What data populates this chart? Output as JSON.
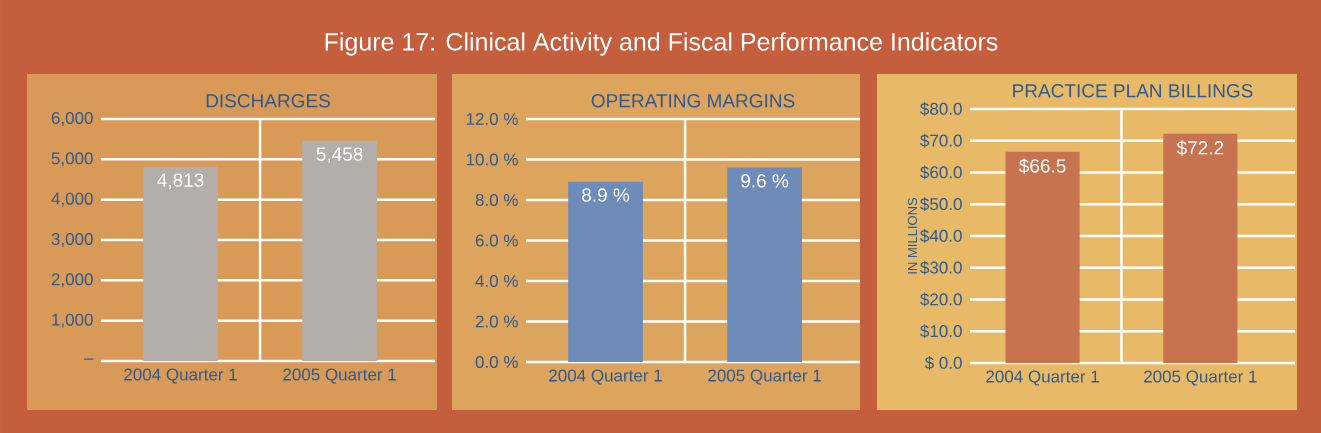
{
  "chart_data": [
    {
      "type": "other",
      "title": "Figure 17: Clinical Activity and Fiscal Performance Indicators"
    },
    {
      "type": "bar",
      "title": "DISCHARGES",
      "categories": [
        "2004 Quarter 1",
        "2005 Quarter 1"
      ],
      "series": [
        {
          "color": "#b3aeaa",
          "values": [
            4813,
            5458
          ]
        }
      ],
      "value_labels": [
        "4,813",
        "5,458"
      ],
      "ylim": [
        0,
        6000
      ],
      "yticks": [
        {
          "value": 0,
          "label": "–"
        },
        {
          "value": 1000,
          "label": "1,000"
        },
        {
          "value": 2000,
          "label": "2,000"
        },
        {
          "value": 3000,
          "label": "3,000"
        },
        {
          "value": 4000,
          "label": "4,000"
        },
        {
          "value": 5000,
          "label": "5,000"
        },
        {
          "value": 6000,
          "label": "6,000"
        }
      ],
      "grid": true
    },
    {
      "type": "bar",
      "title": "OPERATING MARGINS",
      "categories": [
        "2004 Quarter 1",
        "2005 Quarter 1"
      ],
      "series": [
        {
          "color": "#6f8bb8",
          "values": [
            8.9,
            9.6
          ]
        }
      ],
      "value_labels": [
        "8.9 %",
        "9.6 %"
      ],
      "ylim": [
        0,
        12
      ],
      "yticks": [
        {
          "value": 0,
          "label": "0.0 %"
        },
        {
          "value": 2,
          "label": "2.0 %"
        },
        {
          "value": 4,
          "label": "4.0 %"
        },
        {
          "value": 6,
          "label": "6.0 %"
        },
        {
          "value": 8,
          "label": "8.0 %"
        },
        {
          "value": 10,
          "label": "10.0 %"
        },
        {
          "value": 12,
          "label": "12.0 %"
        }
      ],
      "grid": true
    },
    {
      "type": "bar",
      "title": "PRACTICE PLAN BILLINGS",
      "ylabel": "IN MILLIONS",
      "categories": [
        "2004 Quarter 1",
        "2005 Quarter 1"
      ],
      "series": [
        {
          "color": "#c87350",
          "values": [
            66.5,
            72.2
          ]
        }
      ],
      "value_labels": [
        "$66.5",
        "$72.2"
      ],
      "ylim": [
        0,
        80
      ],
      "yticks": [
        {
          "value": 0,
          "label": "$ 0.0"
        },
        {
          "value": 10,
          "label": "$10.0"
        },
        {
          "value": 20,
          "label": "$20.0"
        },
        {
          "value": 30,
          "label": "$30.0"
        },
        {
          "value": 40,
          "label": "$40.0"
        },
        {
          "value": 50,
          "label": "$50.0"
        },
        {
          "value": 60,
          "label": "$60.0"
        },
        {
          "value": 70,
          "label": "$70.0"
        },
        {
          "value": 80,
          "label": "$80.0"
        }
      ],
      "grid": true
    }
  ]
}
